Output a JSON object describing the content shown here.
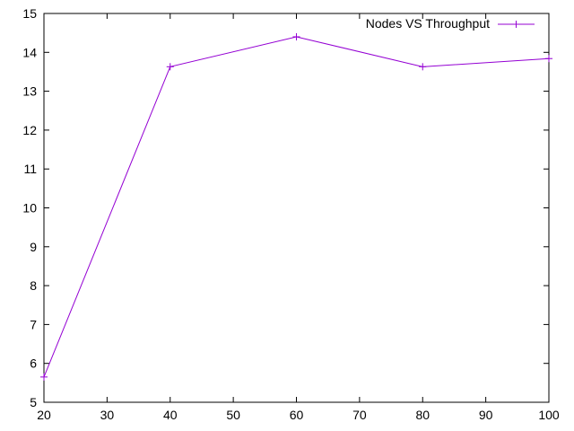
{
  "chart_data": {
    "type": "line",
    "title": "",
    "xlabel": "",
    "ylabel": "",
    "x": [
      20,
      40,
      60,
      80,
      100
    ],
    "xlim": [
      20,
      100
    ],
    "ylim": [
      5,
      15
    ],
    "xticks": [
      20,
      30,
      40,
      50,
      60,
      70,
      80,
      90,
      100
    ],
    "yticks": [
      5,
      6,
      7,
      8,
      9,
      10,
      11,
      12,
      13,
      14,
      15
    ],
    "grid": false,
    "legend_position": "top-right",
    "series": [
      {
        "name": "Nodes VS Throughput",
        "values": [
          5.65,
          13.63,
          14.4,
          13.63,
          13.84
        ],
        "color": "#9400d3",
        "marker": "plus"
      }
    ]
  }
}
